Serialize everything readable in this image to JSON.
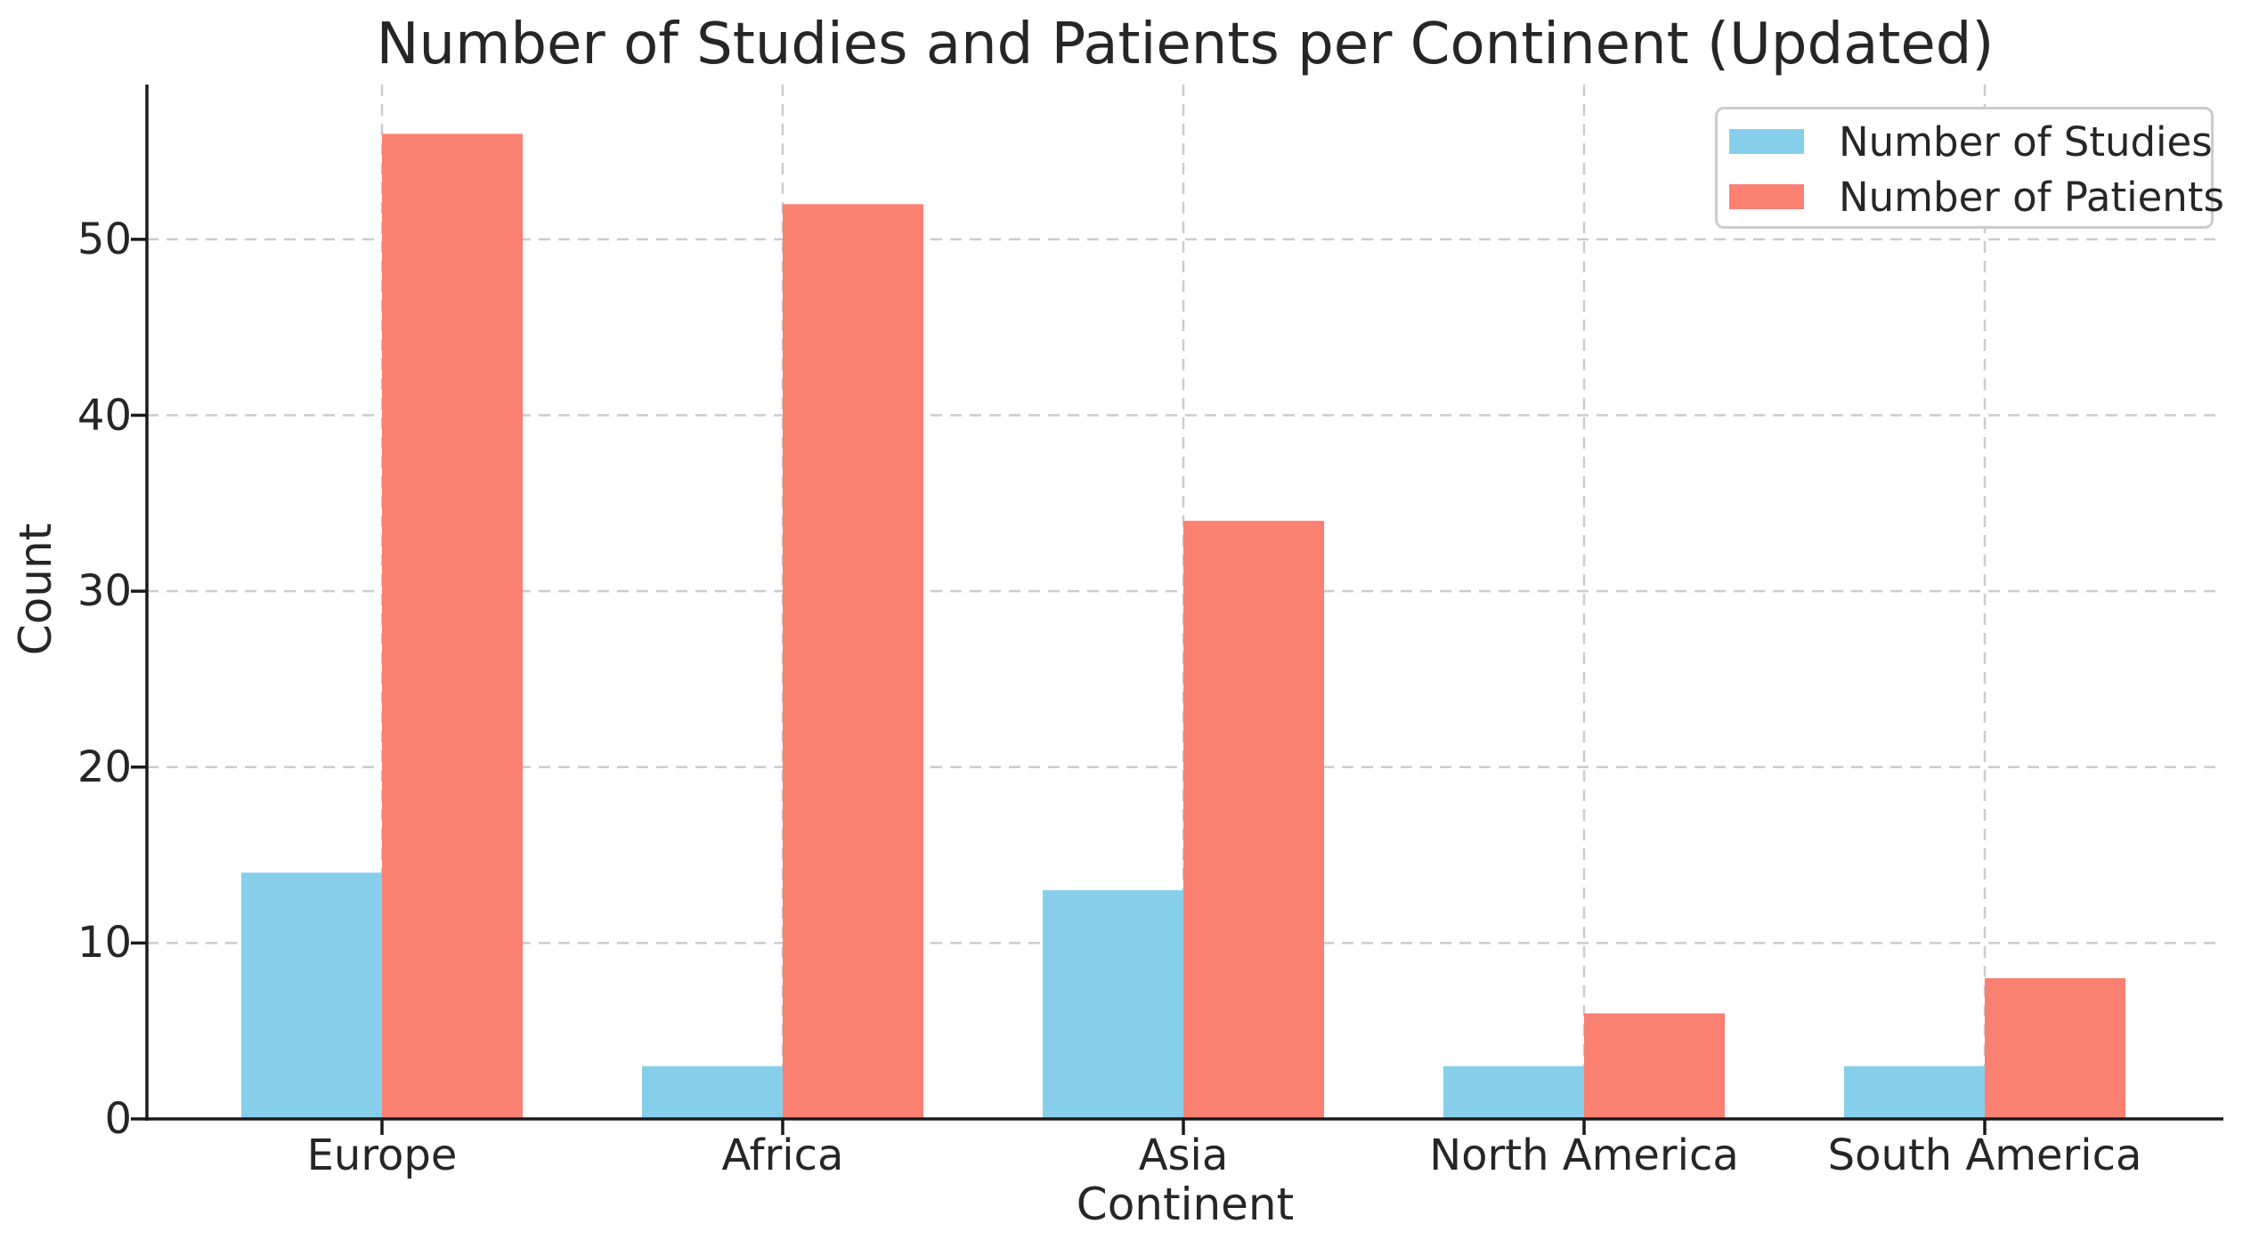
{
  "chart_data": {
    "type": "bar",
    "title": "Number of Studies and Patients per Continent (Updated)",
    "xlabel": "Continent",
    "ylabel": "Count",
    "categories": [
      "Europe",
      "Africa",
      "Asia",
      "North America",
      "South America"
    ],
    "series": [
      {
        "name": "Number of Studies",
        "color": "#87CEEB",
        "values": [
          14,
          3,
          13,
          3,
          3
        ]
      },
      {
        "name": "Number of Patients",
        "color": "#FA8072",
        "values": [
          56,
          52,
          34,
          6,
          8
        ]
      }
    ],
    "yticks": [
      0,
      10,
      20,
      30,
      40,
      50
    ],
    "ylim": [
      0,
      58.8
    ],
    "bar_width_units": 0.35,
    "grid": "dashed",
    "legend_position": "upper right"
  },
  "colors": {
    "grid": "#cccccc",
    "spine": "#1a1a1a",
    "text": "#262626",
    "background": "#ffffff",
    "legend_border": "#cccccc"
  }
}
